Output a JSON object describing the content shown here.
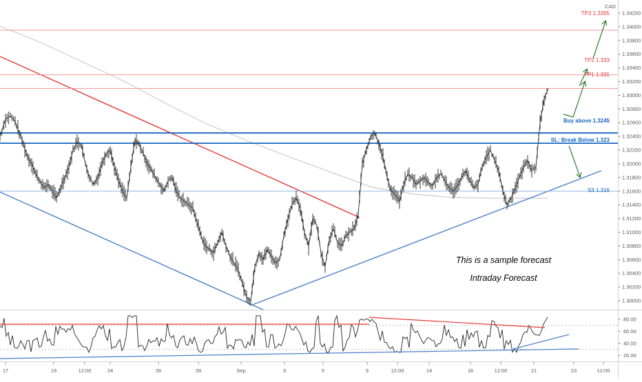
{
  "chart_data": {
    "type": "line",
    "currency": "CAD",
    "price_axis": {
      "min": 1.2993,
      "max": 1.3432,
      "ticks": [
        "1.34200",
        "1.34000",
        "1.33800",
        "1.33600",
        "1.33400",
        "1.33200",
        "1.33000",
        "1.32800",
        "1.32600",
        "1.32400",
        "1.32200",
        "1.32000",
        "1.31800",
        "1.31600",
        "1.31400",
        "1.31200",
        "1.31000",
        "1.30800",
        "1.30600",
        "1.30400",
        "1.30200",
        "1.30000"
      ]
    },
    "time_axis": {
      "labels": [
        "17",
        "19",
        "12:00",
        "24",
        "26",
        "28",
        "Sep",
        "3",
        "5",
        "9",
        "12:00",
        "14",
        "16",
        "12:00",
        "21",
        "23",
        "12:00"
      ]
    },
    "price_series": {
      "x": [
        0,
        8,
        15,
        22,
        28,
        34,
        40,
        46,
        52,
        58,
        64,
        70,
        76,
        82,
        88,
        94,
        100,
        106,
        112,
        118,
        124,
        130,
        136,
        142,
        148,
        154,
        160,
        166,
        172,
        178,
        184,
        190,
        196,
        202,
        208,
        214,
        220,
        226,
        232,
        238,
        244,
        250,
        256,
        262,
        268,
        274,
        280,
        286,
        292,
        298,
        304,
        310,
        316,
        322,
        328,
        334,
        340,
        346,
        352,
        358,
        364,
        370,
        376,
        382,
        388,
        394,
        400,
        406,
        412,
        418,
        424,
        430,
        436,
        442,
        448,
        454,
        460,
        466,
        472,
        478,
        484,
        490,
        496,
        502,
        508,
        514,
        520,
        526,
        532,
        538,
        544,
        550,
        556,
        562,
        568,
        574,
        580,
        586,
        592,
        598,
        604,
        610,
        616,
        622,
        628,
        634,
        640,
        646,
        652,
        658,
        664,
        670,
        676,
        682,
        688,
        694,
        700,
        706,
        712,
        718,
        724,
        730,
        736,
        742,
        748,
        754,
        760,
        766,
        772,
        778,
        784,
        790,
        796
      ],
      "y": [
        1.324,
        1.3265,
        1.327,
        1.3262,
        1.3245,
        1.3228,
        1.321,
        1.32,
        1.3185,
        1.3175,
        1.3165,
        1.317,
        1.316,
        1.315,
        1.3165,
        1.318,
        1.3195,
        1.322,
        1.3232,
        1.3228,
        1.32,
        1.318,
        1.317,
        1.318,
        1.32,
        1.3215,
        1.322,
        1.3195,
        1.3175,
        1.316,
        1.315,
        1.3195,
        1.3235,
        1.3228,
        1.3215,
        1.32,
        1.319,
        1.318,
        1.317,
        1.316,
        1.3175,
        1.318,
        1.316,
        1.315,
        1.3145,
        1.314,
        1.3135,
        1.3115,
        1.3095,
        1.308,
        1.3075,
        1.307,
        1.3085,
        1.31,
        1.308,
        1.3065,
        1.3055,
        1.3045,
        1.3025,
        1.3005,
        1.3,
        1.305,
        1.307,
        1.306,
        1.3075,
        1.3065,
        1.3055,
        1.306,
        1.3095,
        1.312,
        1.314,
        1.315,
        1.3135,
        1.31,
        1.308,
        1.312,
        1.311,
        1.307,
        1.305,
        1.309,
        1.3105,
        1.3085,
        1.308,
        1.3095,
        1.31,
        1.3105,
        1.3125,
        1.32,
        1.322,
        1.324,
        1.3245,
        1.323,
        1.321,
        1.318,
        1.316,
        1.3155,
        1.3145,
        1.317,
        1.3185,
        1.318,
        1.317,
        1.3175,
        1.318,
        1.3172,
        1.3168,
        1.318,
        1.3185,
        1.3175,
        1.3165,
        1.316,
        1.3168,
        1.318,
        1.319,
        1.3175,
        1.3165,
        1.317,
        1.3195,
        1.321,
        1.322,
        1.3205,
        1.319,
        1.316,
        1.314,
        1.315,
        1.3165,
        1.318,
        1.3195,
        1.3205,
        1.319,
        1.3195,
        1.326,
        1.3295,
        1.331
      ]
    },
    "levels": [
      {
        "label": "TP3 1.3395",
        "price": 1.3395,
        "color": "#e53935"
      },
      {
        "label": "TP2 1.333",
        "price": 1.333,
        "color": "#e53935"
      },
      {
        "label": "TP1 1.331",
        "price": 1.331,
        "color": "#e53935"
      },
      {
        "label": "Buy above 1.3245",
        "price": 1.3245,
        "color": "#1565c0"
      },
      {
        "label": "SL: Break Below 1.323",
        "price": 1.323,
        "color": "#1565c0"
      },
      {
        "label": "S3 1.316",
        "price": 1.316,
        "color": "#1565c0"
      }
    ],
    "annotations": [
      "This is a sample forecast",
      "Intraday Forecast"
    ],
    "oscillator": {
      "ticks": [
        "80.00",
        "60.00",
        "40.00",
        "20.00"
      ],
      "min": 10,
      "max": 95,
      "overbought": 70,
      "oversold": 30
    },
    "grid": false,
    "colors": {
      "price": "#222222",
      "resistance": "#e53935",
      "support": "#4a7fc9",
      "arrows": "#2e7d32",
      "moving_average": "#cccccc"
    }
  }
}
